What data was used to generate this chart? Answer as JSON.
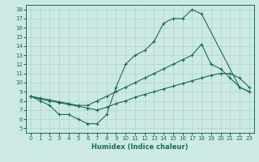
{
  "xlabel": "Humidex (Indice chaleur)",
  "xlim": [
    -0.5,
    23.5
  ],
  "ylim": [
    4.5,
    18.5
  ],
  "xticks": [
    0,
    1,
    2,
    3,
    4,
    5,
    6,
    7,
    8,
    9,
    10,
    11,
    12,
    13,
    14,
    15,
    16,
    17,
    18,
    19,
    20,
    21,
    22,
    23
  ],
  "yticks": [
    5,
    6,
    7,
    8,
    9,
    10,
    11,
    12,
    13,
    14,
    15,
    16,
    17,
    18
  ],
  "background_color": "#cce9e5",
  "grid_color": "#aed4cf",
  "line_color": "#1a6b5a",
  "line1_x": [
    0,
    1,
    2,
    3,
    4,
    5,
    6,
    7,
    8,
    9,
    10,
    11,
    12,
    13,
    14,
    15,
    16,
    17,
    18,
    22,
    23
  ],
  "line1_y": [
    8.5,
    8.0,
    7.5,
    6.5,
    6.5,
    6.0,
    5.5,
    5.5,
    6.5,
    9.5,
    12.0,
    13.0,
    13.5,
    14.5,
    16.5,
    17.0,
    17.0,
    18.0,
    17.5,
    9.5,
    9.0
  ],
  "line2_x": [
    0,
    1,
    2,
    3,
    4,
    5,
    6,
    7,
    8,
    9,
    10,
    11,
    12,
    13,
    14,
    15,
    16,
    17,
    18,
    19,
    20,
    21,
    22,
    23
  ],
  "line2_y": [
    8.5,
    8.3,
    8.1,
    7.9,
    7.7,
    7.5,
    7.5,
    8.0,
    8.5,
    9.0,
    9.5,
    10.0,
    10.5,
    11.0,
    11.5,
    12.0,
    12.5,
    13.0,
    14.2,
    12.0,
    11.5,
    10.5,
    9.5,
    9.0
  ],
  "line3_x": [
    0,
    1,
    2,
    3,
    4,
    5,
    6,
    7,
    8,
    9,
    10,
    11,
    12,
    13,
    14,
    15,
    16,
    17,
    18,
    19,
    20,
    21,
    22,
    23
  ],
  "line3_y": [
    8.5,
    8.2,
    8.0,
    7.8,
    7.6,
    7.4,
    7.2,
    7.0,
    7.3,
    7.7,
    8.0,
    8.4,
    8.7,
    9.0,
    9.3,
    9.6,
    9.9,
    10.2,
    10.5,
    10.8,
    11.0,
    11.0,
    10.5,
    9.5
  ]
}
